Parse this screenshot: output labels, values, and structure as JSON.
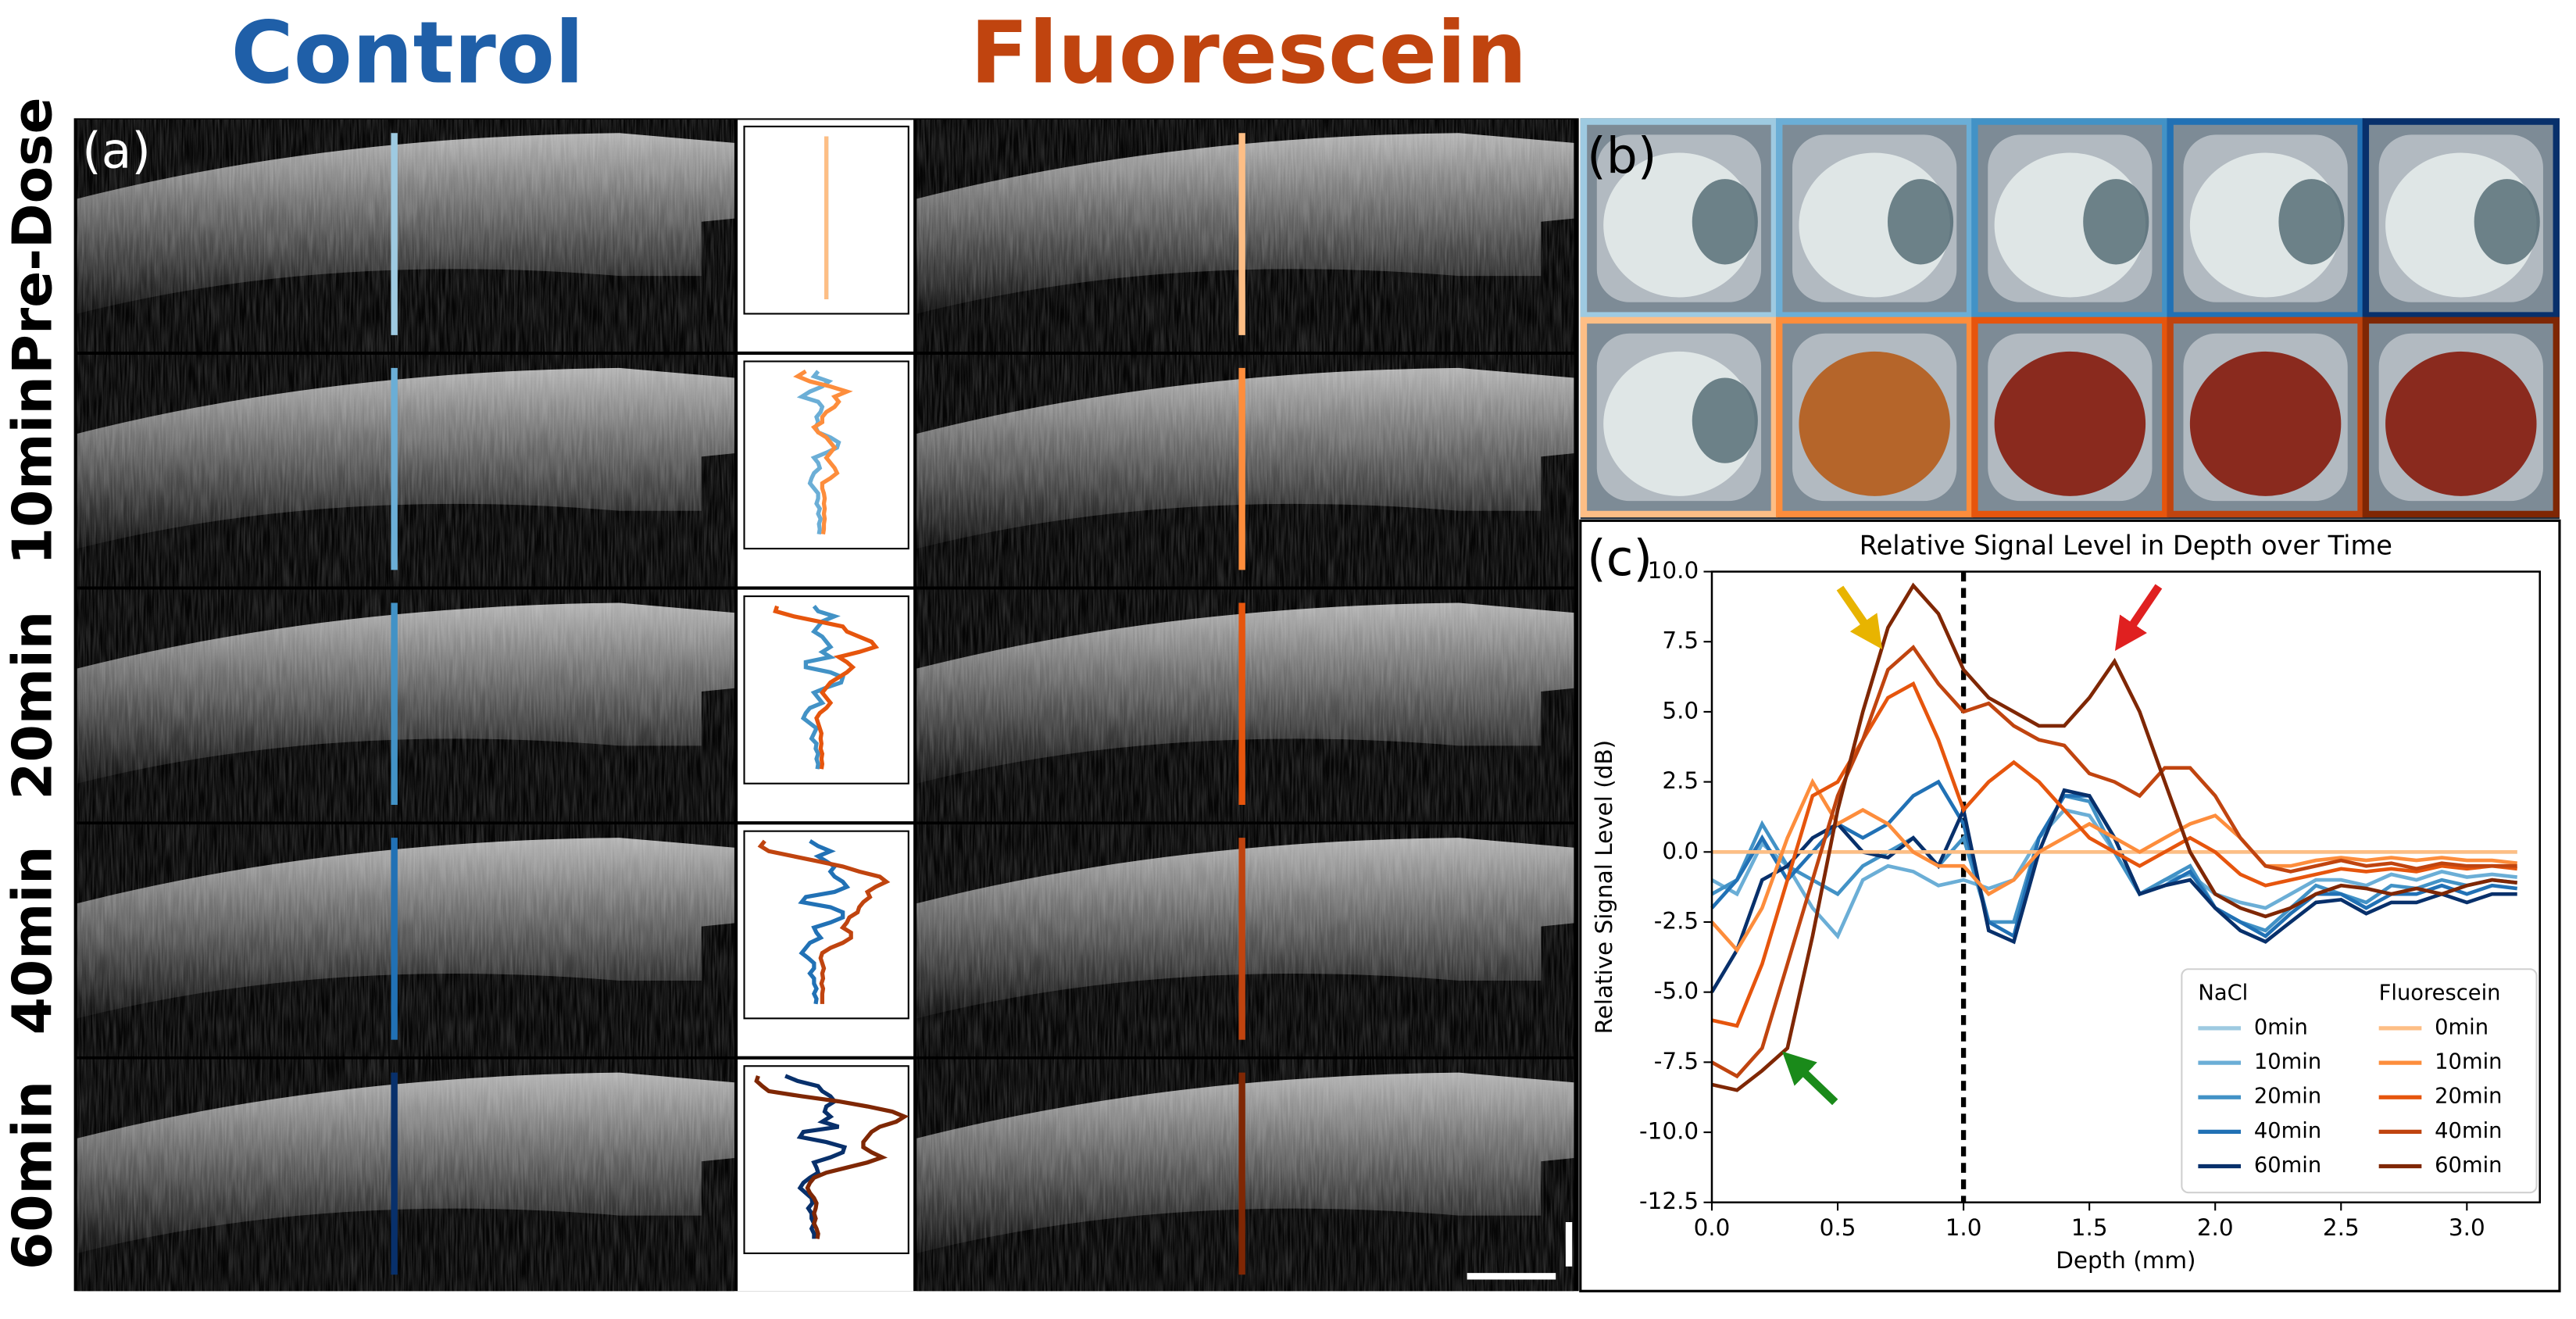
{
  "headers": {
    "control": "Control",
    "fluorescein": "Fluorescein"
  },
  "panel_labels": [
    "(a)",
    "(b)",
    "(c)"
  ],
  "rows": [
    "Pre-Dose",
    "10min",
    "20min",
    "40min",
    "60min"
  ],
  "chart_data": {
    "type": "line",
    "title": "Relative Signal Level in Depth over Time",
    "x_label": "Depth (mm)",
    "y_label": "Relative Signal Level (dB)",
    "xlim": [
      0,
      3.29
    ],
    "ylim": [
      -12.5,
      10
    ],
    "xticks": [
      {
        "value": 0,
        "label": "0.0"
      },
      0.5,
      {
        "value": 1,
        "label": "1.0"
      },
      1.5,
      {
        "value": 2,
        "label": "2.0"
      },
      2.5,
      {
        "value": 3,
        "label": "3.0"
      }
    ],
    "yticks": [
      -12.5,
      {
        "value": -10,
        "label": "-10.0"
      },
      -7.5,
      {
        "value": -5,
        "label": "-5.0"
      },
      -2.5,
      {
        "value": 0,
        "label": "0.0"
      },
      2.5,
      {
        "value": 5,
        "label": "5.0"
      },
      7.5,
      {
        "value": 10,
        "label": "10.0"
      }
    ],
    "reference_line_x": 1,
    "legend_groups": [
      "NaCl",
      "Fluorescein"
    ],
    "x": [
      0,
      0.1,
      0.2,
      0.3,
      0.4,
      0.5,
      0.6,
      0.7,
      0.8,
      0.9,
      1,
      1.1,
      1.2,
      1.3,
      1.4,
      1.5,
      1.6,
      1.7,
      1.8,
      1.9,
      2,
      2.1,
      2.2,
      2.3,
      2.4,
      2.5,
      2.6,
      2.7,
      2.8,
      2.9,
      3,
      3.1,
      3.2
    ],
    "series": [
      {
        "name": "0min",
        "color": "#9ecae1",
        "values": [
          0,
          0,
          0,
          0,
          0,
          0,
          0,
          0,
          0,
          0,
          0,
          0,
          0,
          0,
          0,
          0,
          0,
          0,
          0,
          0,
          0,
          0,
          0,
          0,
          0,
          0,
          0,
          0,
          0,
          0,
          0,
          0,
          0
        ]
      },
      {
        "name": "10min",
        "color": "#6baed6",
        "values": [
          -1,
          -1.5,
          0.3,
          -0.5,
          -2,
          -3,
          -1,
          -0.5,
          -0.7,
          -1.2,
          -1,
          -1.3,
          -1,
          0.5,
          1.5,
          1.3,
          0,
          -1.5,
          -1,
          -0.8,
          -1.5,
          -1.8,
          -2,
          -1.5,
          -1,
          -1,
          -1.2,
          -0.8,
          -1,
          -0.7,
          -0.9,
          -0.8,
          -0.9
        ]
      },
      {
        "name": "20min",
        "color": "#4292c6",
        "values": [
          -1.5,
          -1,
          1,
          -0.5,
          -1,
          -1.5,
          -0.5,
          0,
          0.5,
          -0.5,
          0.5,
          -2.5,
          -2.5,
          0.5,
          2,
          1.8,
          0,
          -1.5,
          -1,
          -0.5,
          -2,
          -2.5,
          -2.8,
          -2,
          -1.2,
          -1.5,
          -1.8,
          -1.2,
          -1.3,
          -1,
          -1.2,
          -1,
          -1.1
        ]
      },
      {
        "name": "40min",
        "color": "#2171b5",
        "values": [
          -2,
          -1,
          0.5,
          -1,
          0,
          1,
          0.5,
          1,
          2,
          2.5,
          1,
          -2.5,
          -3,
          0.5,
          2,
          2,
          0.5,
          -1.5,
          -1.2,
          -0.7,
          -2,
          -2.5,
          -3,
          -2.2,
          -1.5,
          -1.5,
          -2,
          -1.5,
          -1.5,
          -1.2,
          -1.5,
          -1.2,
          -1.3
        ]
      },
      {
        "name": "60min",
        "color": "#08306b",
        "values": [
          -5,
          -3.5,
          -1,
          -0.5,
          0.5,
          1,
          0,
          -0.2,
          0.5,
          -0.5,
          1.5,
          -2.8,
          -3.2,
          0,
          2.2,
          2,
          0.5,
          -1.5,
          -1.2,
          -1,
          -2,
          -2.8,
          -3.2,
          -2.5,
          -1.8,
          -1.7,
          -2.2,
          -1.8,
          -1.8,
          -1.5,
          -1.8,
          -1.5,
          -1.5
        ]
      },
      {
        "name": "0min",
        "color": "#fdbe85",
        "values": [
          0,
          0,
          0,
          0,
          0,
          0,
          0,
          0,
          0,
          0,
          0,
          0,
          0,
          0,
          0,
          0,
          0,
          0,
          0,
          0,
          0,
          0,
          0,
          0,
          0,
          0,
          0,
          0,
          0,
          0,
          0,
          0,
          0
        ]
      },
      {
        "name": "10min",
        "color": "#fd8d3c",
        "values": [
          -2.5,
          -3.5,
          -2,
          0.5,
          2.5,
          1,
          1.5,
          1,
          0,
          -0.5,
          -0.5,
          -1.5,
          -1,
          0,
          0.5,
          1,
          0.5,
          0,
          0.5,
          1,
          1.3,
          0.5,
          -0.5,
          -0.5,
          -0.3,
          -0.2,
          -0.3,
          -0.2,
          -0.3,
          -0.2,
          -0.3,
          -0.3,
          -0.4
        ]
      },
      {
        "name": "20min",
        "color": "#e6550d",
        "values": [
          -6,
          -6.2,
          -4,
          -1,
          2,
          2.5,
          4,
          5.5,
          6,
          4,
          1.5,
          2.5,
          3.2,
          2.5,
          1.5,
          0.5,
          0,
          -0.5,
          0,
          0.5,
          0,
          -0.8,
          -1.2,
          -1,
          -0.8,
          -0.6,
          -0.7,
          -0.6,
          -0.7,
          -0.5,
          -0.6,
          -0.5,
          -0.6
        ]
      },
      {
        "name": "40min",
        "color": "#c0440f",
        "values": [
          -7.5,
          -8,
          -7,
          -4,
          -1,
          2,
          4,
          6.5,
          7.3,
          6,
          5,
          5.3,
          4.5,
          4,
          3.8,
          2.8,
          2.5,
          2,
          3,
          3,
          2,
          0.5,
          -0.5,
          -0.7,
          -0.5,
          -0.3,
          -0.5,
          -0.4,
          -0.6,
          -0.4,
          -0.5,
          -0.5,
          -0.5
        ]
      },
      {
        "name": "60min",
        "color": "#7f2704",
        "values": [
          -8.3,
          -8.5,
          -7.8,
          -7,
          -3,
          1.5,
          5,
          8,
          9.5,
          8.5,
          6.5,
          5.5,
          5,
          4.5,
          4.5,
          5.5,
          6.8,
          5,
          2.5,
          0,
          -1.5,
          -2,
          -2.3,
          -2,
          -1.5,
          -1.2,
          -1.3,
          -1.5,
          -1.3,
          -1.5,
          -1.2,
          -1,
          -1.1
        ]
      }
    ]
  }
}
